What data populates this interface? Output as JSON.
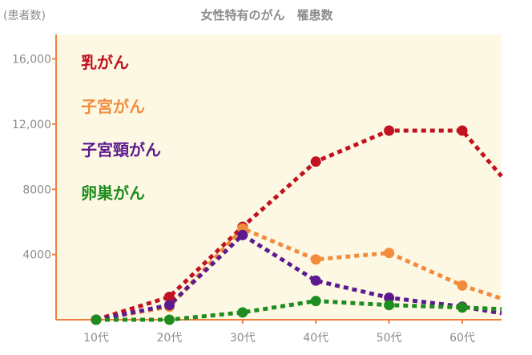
{
  "chart_data": {
    "type": "line",
    "title": "女性特有のがん　罹患数",
    "ylabel": "(患者数)",
    "xlabel": "",
    "categories": [
      "10代",
      "20代",
      "30代",
      "40代",
      "50代",
      "60代"
    ],
    "ylim": [
      0,
      17500
    ],
    "y_ticks": [
      4000,
      8000,
      12000,
      16000
    ],
    "y_tick_labels": [
      "4000",
      "8000",
      "12,000",
      "16,000"
    ],
    "legend_placement": "left-inside",
    "grid": false,
    "colors": {
      "plot_background": "#fdf8e4",
      "axis": "#f07f3c"
    },
    "series": [
      {
        "name": "乳がん",
        "color": "#c1121f",
        "values": [
          0,
          1400,
          5700,
          9700,
          11600,
          11600
        ],
        "end_value": 8800
      },
      {
        "name": "子宮がん",
        "color": "#f28c3c",
        "values": [
          0,
          800,
          5600,
          3700,
          4100,
          2100
        ],
        "end_value": 1300
      },
      {
        "name": "子宮頸がん",
        "color": "#5c1a8f",
        "values": [
          0,
          900,
          5200,
          2400,
          1350,
          800
        ],
        "end_value": 400
      },
      {
        "name": "卵巣がん",
        "color": "#1e8c1e",
        "values": [
          0,
          0,
          450,
          1150,
          900,
          750
        ],
        "end_value": 650
      }
    ]
  }
}
